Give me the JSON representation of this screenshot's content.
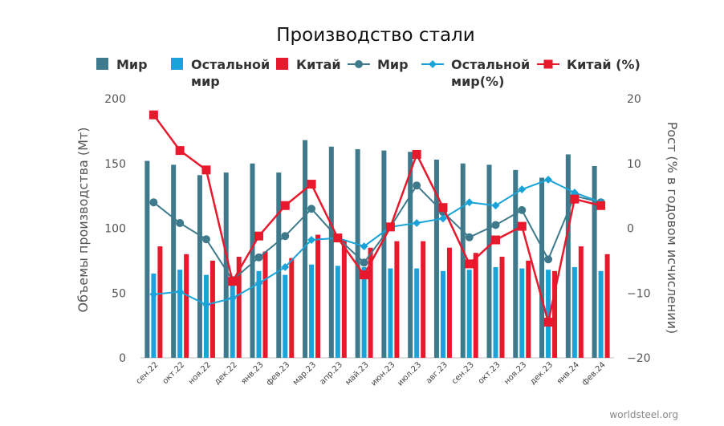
{
  "chart_data": {
    "type": "bar+line",
    "title": "Производство стали",
    "categories": [
      "сен.22",
      "окт.22",
      "ноя.22",
      "дек.22",
      "янв.23",
      "фев.23",
      "мар.23",
      "апр.23",
      "май.23",
      "июн.23",
      "июл.23",
      "авг.23",
      "сен.23",
      "окт.23",
      "ноя.23",
      "дек.23",
      "янв.24",
      "фев.24"
    ],
    "bar_series": [
      {
        "name": "Мир",
        "color": "#3e7a8c",
        "values": [
          152,
          149,
          141,
          143,
          150,
          143,
          168,
          163,
          161,
          160,
          159,
          153,
          150,
          149,
          145,
          139,
          157,
          148
        ]
      },
      {
        "name": "Остальной мир",
        "color": "#1aa3d9",
        "values": [
          65,
          68,
          64,
          57,
          67,
          64,
          72,
          71,
          70,
          69,
          69,
          67,
          68,
          70,
          69,
          68,
          70,
          67
        ]
      },
      {
        "name": "Китай",
        "color": "#e8192c",
        "values": [
          86,
          80,
          75,
          78,
          82,
          77,
          95,
          91,
          85,
          90,
          90,
          85,
          81,
          78,
          75,
          67,
          86,
          80
        ]
      }
    ],
    "line_series": [
      {
        "name": "Мир",
        "color": "#3e7a8c",
        "values": [
          4,
          0.8,
          -1.7,
          -8,
          -4.5,
          -1.2,
          3,
          -1.5,
          -5.3,
          0.2,
          6.6,
          2.5,
          -1.4,
          0.5,
          2.8,
          -4.8,
          5,
          4
        ]
      },
      {
        "name": "Остальной мир(%)",
        "color": "#1aa3d9",
        "values": [
          -10.2,
          -9.8,
          -11.8,
          -10.8,
          -8.5,
          -6,
          -1.8,
          -1.5,
          -2.8,
          0.2,
          0.8,
          1.5,
          4,
          3.5,
          6,
          7.5,
          5.5,
          4
        ]
      },
      {
        "name": "Китай (%)",
        "color": "#e8192c",
        "values": [
          17.5,
          12,
          9,
          -8.2,
          -1.2,
          3.5,
          6.8,
          -1.5,
          -7.2,
          0.2,
          11.4,
          3.2,
          -5.5,
          -1.8,
          0.3,
          -14.5,
          4.5,
          3.5
        ]
      }
    ],
    "legend": [
      {
        "label": "Мир",
        "label2": "",
        "kind": "bar",
        "color": "#3e7a8c"
      },
      {
        "label": "Остальной",
        "label2": "мир",
        "kind": "bar",
        "color": "#1aa3d9"
      },
      {
        "label": "Китай",
        "label2": "",
        "kind": "bar",
        "color": "#e8192c"
      },
      {
        "label": "Мир",
        "label2": "",
        "kind": "line-circle",
        "color": "#3e7a8c"
      },
      {
        "label": "Остальной",
        "label2": "мир(%)",
        "kind": "line-diamond",
        "color": "#1aa3d9"
      },
      {
        "label": "Китай (%)",
        "label2": "",
        "kind": "line-square",
        "color": "#e8192c"
      }
    ],
    "y_left": {
      "label": "Объемы производства (Мт)",
      "min": 0,
      "max": 200,
      "ticks": [
        0,
        50,
        100,
        150,
        200
      ]
    },
    "y_right": {
      "label": "Рост (% в годовом исчислении)",
      "min": -20,
      "max": 20,
      "ticks": [
        -20,
        -10,
        0,
        10,
        20
      ]
    },
    "grid": false,
    "legend_position": "top"
  },
  "source": "worldsteel.org"
}
